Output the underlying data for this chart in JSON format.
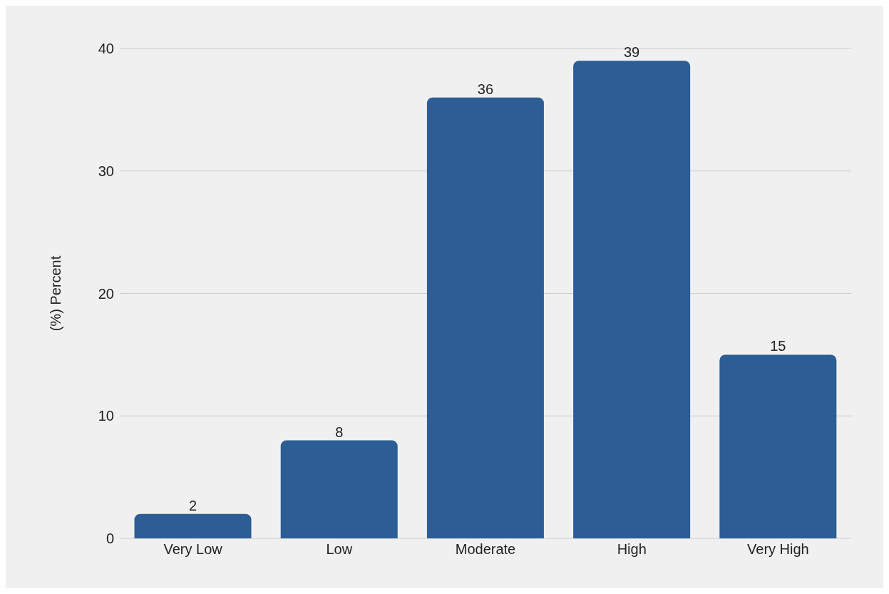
{
  "chart_data": {
    "type": "bar",
    "ylabel": "(%) Percent",
    "categories": [
      "Very Low",
      "Low",
      "Moderate",
      "High",
      "Very High"
    ],
    "values": [
      2,
      8,
      36,
      39,
      15
    ],
    "color": "#2c5d94",
    "ylim": [
      0,
      40
    ],
    "yticks": [
      0,
      10,
      20,
      30,
      40
    ],
    "grid": "y",
    "data_labels": true
  }
}
